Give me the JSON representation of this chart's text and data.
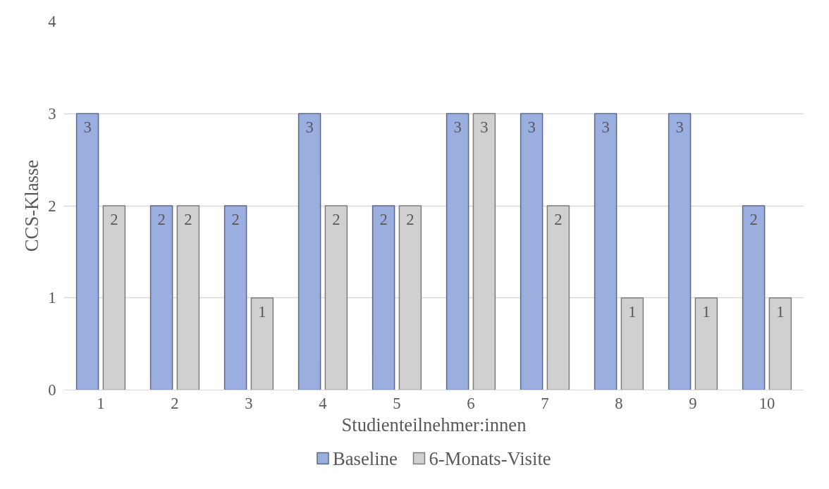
{
  "chart_data": {
    "type": "bar",
    "xlabel": "Studienteilnehmer:innen",
    "ylabel": "CCS-Klasse",
    "categories": [
      "1",
      "2",
      "3",
      "4",
      "5",
      "6",
      "7",
      "8",
      "9",
      "10"
    ],
    "series": [
      {
        "name": "Baseline",
        "color": "#9aaee0",
        "values": [
          3,
          2,
          2,
          3,
          2,
          3,
          3,
          3,
          3,
          2
        ]
      },
      {
        "name": "6-Monats-Visite",
        "color": "#d0d0d0",
        "values": [
          2,
          2,
          1,
          2,
          2,
          3,
          2,
          1,
          1,
          1
        ]
      }
    ],
    "ylim": [
      0,
      4
    ],
    "yticks": [
      0,
      1,
      2,
      3,
      4
    ],
    "grid": "y",
    "legend": "bottom",
    "data_labels": true
  }
}
